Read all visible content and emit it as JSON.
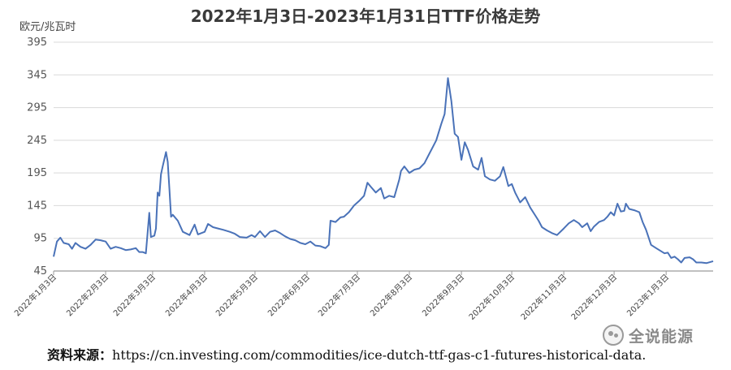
{
  "chart_data": {
    "type": "line",
    "title": "2022年1月3日-2023年1月31日TTF价格走势",
    "ylabel": "欧元/兆瓦时",
    "xlabel": "",
    "ylim": [
      45,
      395
    ],
    "yticks": [
      45,
      95,
      145,
      195,
      245,
      295,
      345,
      395
    ],
    "grid": "horizontal",
    "legend": "none",
    "line_color": "#4a72b8",
    "xlim": [
      "2022-01-03",
      "2023-01-31"
    ],
    "xticks": [
      {
        "date": "2022-01-03",
        "label": "2022年1月3日"
      },
      {
        "date": "2022-02-03",
        "label": "2022年2月3日"
      },
      {
        "date": "2022-03-03",
        "label": "2022年3月3日"
      },
      {
        "date": "2022-04-03",
        "label": "2022年4月3日"
      },
      {
        "date": "2022-05-03",
        "label": "2022年5月3日"
      },
      {
        "date": "2022-06-03",
        "label": "2022年6月3日"
      },
      {
        "date": "2022-07-03",
        "label": "2022年7月3日"
      },
      {
        "date": "2022-08-03",
        "label": "2022年8月3日"
      },
      {
        "date": "2022-09-03",
        "label": "2022年9月3日"
      },
      {
        "date": "2022-10-03",
        "label": "2022年10月3日"
      },
      {
        "date": "2022-11-03",
        "label": "2022年11月3日"
      },
      {
        "date": "2022-12-03",
        "label": "2022年12月3日"
      },
      {
        "date": "2023-01-03",
        "label": "2023年1月3日"
      }
    ],
    "series": [
      {
        "points": [
          [
            "2022-01-03",
            67
          ],
          [
            "2022-01-05",
            90
          ],
          [
            "2022-01-07",
            96
          ],
          [
            "2022-01-09",
            88
          ],
          [
            "2022-01-12",
            86
          ],
          [
            "2022-01-14",
            79
          ],
          [
            "2022-01-16",
            88
          ],
          [
            "2022-01-19",
            82
          ],
          [
            "2022-01-22",
            79
          ],
          [
            "2022-01-25",
            85
          ],
          [
            "2022-01-28",
            93
          ],
          [
            "2022-01-31",
            92
          ],
          [
            "2022-02-03",
            90
          ],
          [
            "2022-02-06",
            79
          ],
          [
            "2022-02-09",
            82
          ],
          [
            "2022-02-12",
            80
          ],
          [
            "2022-02-15",
            77
          ],
          [
            "2022-02-18",
            78
          ],
          [
            "2022-02-21",
            80
          ],
          [
            "2022-02-23",
            74
          ],
          [
            "2022-02-25",
            74
          ],
          [
            "2022-02-27",
            72
          ],
          [
            "2022-03-01",
            134
          ],
          [
            "2022-03-02",
            97
          ],
          [
            "2022-03-04",
            99
          ],
          [
            "2022-03-05",
            110
          ],
          [
            "2022-03-06",
            165
          ],
          [
            "2022-03-07",
            160
          ],
          [
            "2022-03-08",
            193
          ],
          [
            "2022-03-09",
            205
          ],
          [
            "2022-03-11",
            227
          ],
          [
            "2022-03-12",
            212
          ],
          [
            "2022-03-13",
            170
          ],
          [
            "2022-03-14",
            128
          ],
          [
            "2022-03-15",
            131
          ],
          [
            "2022-03-18",
            122
          ],
          [
            "2022-03-21",
            105
          ],
          [
            "2022-03-25",
            100
          ],
          [
            "2022-03-28",
            116
          ],
          [
            "2022-03-30",
            101
          ],
          [
            "2022-04-03",
            105
          ],
          [
            "2022-04-05",
            117
          ],
          [
            "2022-04-08",
            112
          ],
          [
            "2022-04-11",
            110
          ],
          [
            "2022-04-14",
            108
          ],
          [
            "2022-04-18",
            105
          ],
          [
            "2022-04-21",
            102
          ],
          [
            "2022-04-24",
            97
          ],
          [
            "2022-04-28",
            96
          ],
          [
            "2022-05-01",
            100
          ],
          [
            "2022-05-03",
            97
          ],
          [
            "2022-05-06",
            106
          ],
          [
            "2022-05-09",
            97
          ],
          [
            "2022-05-12",
            105
          ],
          [
            "2022-05-15",
            107
          ],
          [
            "2022-05-18",
            103
          ],
          [
            "2022-05-21",
            98
          ],
          [
            "2022-05-24",
            94
          ],
          [
            "2022-05-27",
            92
          ],
          [
            "2022-05-30",
            88
          ],
          [
            "2022-06-02",
            86
          ],
          [
            "2022-06-05",
            90
          ],
          [
            "2022-06-08",
            84
          ],
          [
            "2022-06-11",
            83
          ],
          [
            "2022-06-14",
            80
          ],
          [
            "2022-06-16",
            85
          ],
          [
            "2022-06-17",
            122
          ],
          [
            "2022-06-20",
            120
          ],
          [
            "2022-06-23",
            127
          ],
          [
            "2022-06-25",
            128
          ],
          [
            "2022-06-28",
            135
          ],
          [
            "2022-07-01",
            145
          ],
          [
            "2022-07-04",
            152
          ],
          [
            "2022-07-07",
            160
          ],
          [
            "2022-07-09",
            180
          ],
          [
            "2022-07-11",
            174
          ],
          [
            "2022-07-14",
            165
          ],
          [
            "2022-07-17",
            172
          ],
          [
            "2022-07-19",
            156
          ],
          [
            "2022-07-22",
            160
          ],
          [
            "2022-07-25",
            158
          ],
          [
            "2022-07-28",
            185
          ],
          [
            "2022-07-29",
            198
          ],
          [
            "2022-07-31",
            205
          ],
          [
            "2022-08-03",
            195
          ],
          [
            "2022-08-06",
            200
          ],
          [
            "2022-08-09",
            202
          ],
          [
            "2022-08-12",
            210
          ],
          [
            "2022-08-15",
            225
          ],
          [
            "2022-08-17",
            235
          ],
          [
            "2022-08-19",
            245
          ],
          [
            "2022-08-22",
            270
          ],
          [
            "2022-08-24",
            285
          ],
          [
            "2022-08-26",
            340
          ],
          [
            "2022-08-28",
            305
          ],
          [
            "2022-08-30",
            255
          ],
          [
            "2022-09-01",
            250
          ],
          [
            "2022-09-03",
            215
          ],
          [
            "2022-09-05",
            242
          ],
          [
            "2022-09-07",
            230
          ],
          [
            "2022-09-10",
            205
          ],
          [
            "2022-09-13",
            200
          ],
          [
            "2022-09-15",
            218
          ],
          [
            "2022-09-17",
            190
          ],
          [
            "2022-09-20",
            185
          ],
          [
            "2022-09-23",
            183
          ],
          [
            "2022-09-26",
            190
          ],
          [
            "2022-09-28",
            204
          ],
          [
            "2022-10-01",
            175
          ],
          [
            "2022-10-03",
            178
          ],
          [
            "2022-10-05",
            165
          ],
          [
            "2022-10-08",
            150
          ],
          [
            "2022-10-11",
            158
          ],
          [
            "2022-10-14",
            142
          ],
          [
            "2022-10-17",
            130
          ],
          [
            "2022-10-19",
            122
          ],
          [
            "2022-10-21",
            112
          ],
          [
            "2022-10-24",
            107
          ],
          [
            "2022-10-27",
            103
          ],
          [
            "2022-10-30",
            100
          ],
          [
            "2022-11-03",
            110
          ],
          [
            "2022-11-06",
            118
          ],
          [
            "2022-11-09",
            123
          ],
          [
            "2022-11-12",
            118
          ],
          [
            "2022-11-14",
            112
          ],
          [
            "2022-11-17",
            118
          ],
          [
            "2022-11-19",
            106
          ],
          [
            "2022-11-21",
            113
          ],
          [
            "2022-11-24",
            120
          ],
          [
            "2022-11-27",
            123
          ],
          [
            "2022-11-29",
            128
          ],
          [
            "2022-12-01",
            135
          ],
          [
            "2022-12-03",
            130
          ],
          [
            "2022-12-05",
            148
          ],
          [
            "2022-12-07",
            136
          ],
          [
            "2022-12-09",
            137
          ],
          [
            "2022-12-10",
            148
          ],
          [
            "2022-12-12",
            140
          ],
          [
            "2022-12-15",
            138
          ],
          [
            "2022-12-18",
            135
          ],
          [
            "2022-12-20",
            120
          ],
          [
            "2022-12-22",
            108
          ],
          [
            "2022-12-25",
            85
          ],
          [
            "2022-12-28",
            80
          ],
          [
            "2023-01-02",
            72
          ],
          [
            "2023-01-04",
            73
          ],
          [
            "2023-01-06",
            65
          ],
          [
            "2023-01-08",
            67
          ],
          [
            "2023-01-10",
            63
          ],
          [
            "2023-01-12",
            58
          ],
          [
            "2023-01-14",
            65
          ],
          [
            "2023-01-17",
            66
          ],
          [
            "2023-01-19",
            63
          ],
          [
            "2023-01-21",
            58
          ],
          [
            "2023-01-24",
            58
          ],
          [
            "2023-01-27",
            57
          ],
          [
            "2023-01-31",
            60
          ]
        ]
      }
    ]
  },
  "source": {
    "label": "资料来源：",
    "url": "https://cn.investing.com/commodities/ice-dutch-ttf-gas-c1-futures-historical-data."
  },
  "watermark": {
    "text": "全说能源",
    "icon": "wechat-icon"
  }
}
